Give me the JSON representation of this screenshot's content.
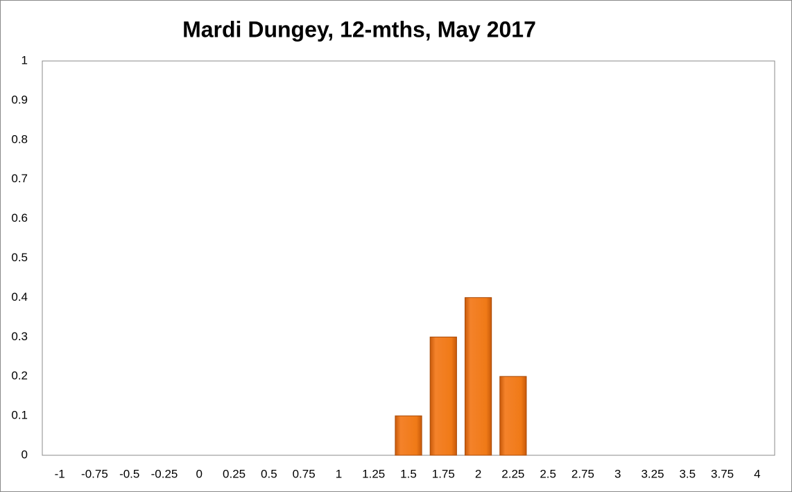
{
  "chart_data": {
    "type": "bar",
    "title": "Mardi Dungey, 12-mths, May 2017",
    "categories": [
      "-1",
      "-0.75",
      "-0.5",
      "-0.25",
      "0",
      "0.25",
      "0.5",
      "0.75",
      "1",
      "1.25",
      "1.5",
      "1.75",
      "2",
      "2.25",
      "2.5",
      "2.75",
      "3",
      "3.25",
      "3.5",
      "3.75",
      "4"
    ],
    "values": [
      0,
      0,
      0,
      0,
      0,
      0,
      0,
      0,
      0,
      0,
      0.1,
      0.3,
      0.4,
      0.2,
      0,
      0,
      0,
      0,
      0,
      0,
      0
    ],
    "color": "#f07a17",
    "ylim": [
      0,
      1
    ],
    "yticks": [
      0,
      0.1,
      0.2,
      0.3,
      0.4,
      0.5,
      0.6,
      0.7,
      0.8,
      0.9,
      1
    ],
    "grid": false
  }
}
